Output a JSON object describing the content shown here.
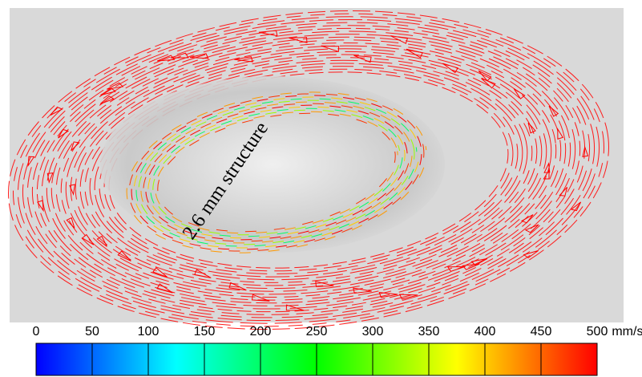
{
  "annotation": "2.6 mm structure",
  "colorbar": {
    "ticks": [
      0,
      50,
      100,
      150,
      200,
      250,
      300,
      350,
      400,
      450,
      500
    ],
    "unit": "mm/s",
    "colors": [
      "#0000ff",
      "#00ffff",
      "#00ff00",
      "#ffff00",
      "#ff0000"
    ]
  }
}
